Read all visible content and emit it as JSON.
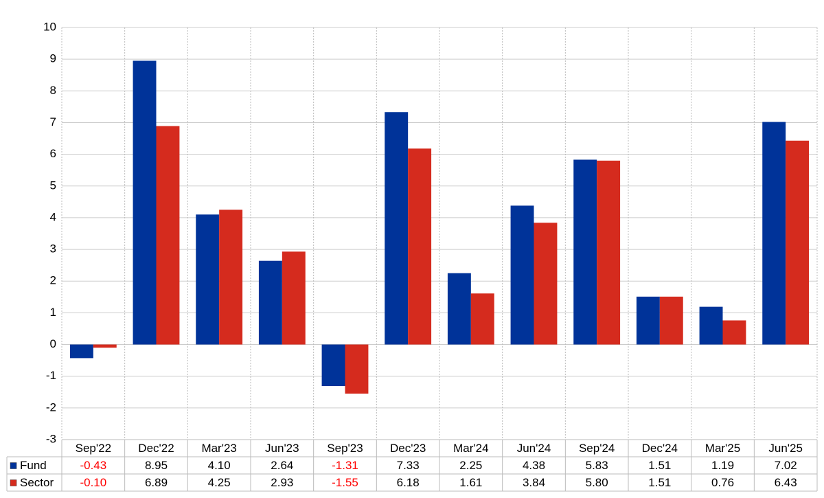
{
  "chart_data": {
    "type": "bar",
    "categories": [
      "Sep'22",
      "Dec'22",
      "Mar'23",
      "Jun'23",
      "Sep'23",
      "Dec'23",
      "Mar'24",
      "Jun'24",
      "Sep'24",
      "Dec'24",
      "Mar'25",
      "Jun'25"
    ],
    "series": [
      {
        "name": "Fund",
        "color": "#003399",
        "values": [
          -0.43,
          8.95,
          4.1,
          2.64,
          -1.31,
          7.33,
          2.25,
          4.38,
          5.83,
          1.51,
          1.19,
          7.02
        ],
        "value_labels": [
          "-0.43",
          "8.95",
          "4.10",
          "2.64",
          "-1.31",
          "7.33",
          "2.25",
          "4.38",
          "5.83",
          "1.51",
          "1.19",
          "7.02"
        ]
      },
      {
        "name": "Sector",
        "color": "#d52b1e",
        "values": [
          -0.1,
          6.89,
          4.25,
          2.93,
          -1.55,
          6.18,
          1.61,
          3.84,
          5.8,
          1.51,
          0.76,
          6.43
        ],
        "value_labels": [
          "-0.10",
          "6.89",
          "4.25",
          "2.93",
          "-1.55",
          "6.18",
          "1.61",
          "3.84",
          "5.80",
          "1.51",
          "0.76",
          "6.43"
        ]
      }
    ],
    "ylim": [
      -3,
      10
    ],
    "yticks": [
      -3,
      -2,
      -1,
      0,
      1,
      2,
      3,
      4,
      5,
      6,
      7,
      8,
      9,
      10
    ],
    "grid": true,
    "negative_color": "#ff0000"
  }
}
